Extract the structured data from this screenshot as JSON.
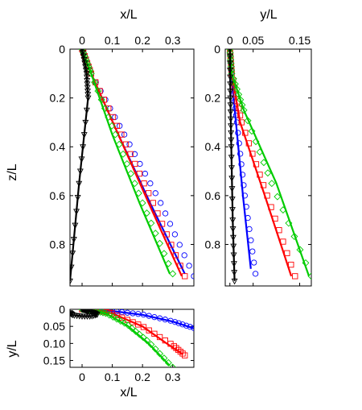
{
  "chart_data": [
    {
      "type": "scatter",
      "panel": "x-z",
      "xlabel": "x/L",
      "ylabel": "z/L",
      "xlim": [
        -0.04,
        0.37
      ],
      "ylim": [
        0,
        0.97
      ],
      "y_reversed": true,
      "xticks": [
        0,
        0.1,
        0.2,
        0.3
      ],
      "xtick_labels": [
        "0",
        "0.1",
        "0.2",
        "0.3"
      ],
      "yticks": [
        0,
        0.2,
        0.4,
        0.6,
        0.8
      ],
      "ytick_labels": [
        "0",
        "0.2",
        "0.4",
        "0.6",
        "0.8"
      ],
      "xaxis_position": "top",
      "grid": false,
      "series": [
        {
          "color": "#0000ff",
          "marker": "circle",
          "x": [
            0,
            0.03,
            0.14,
            0.26,
            0.37
          ],
          "y": [
            0,
            0.1,
            0.35,
            0.63,
            0.93
          ],
          "line_x": [
            0,
            0.03,
            0.12,
            0.225,
            0.34
          ],
          "line_y": [
            0,
            0.1,
            0.35,
            0.63,
            0.92
          ]
        },
        {
          "color": "#ff0000",
          "marker": "square",
          "x": [
            0,
            0.03,
            0.13,
            0.235,
            0.34
          ],
          "y": [
            0,
            0.1,
            0.35,
            0.63,
            0.93
          ],
          "line_x": [
            0,
            0.03,
            0.12,
            0.22,
            0.33
          ],
          "line_y": [
            0,
            0.1,
            0.35,
            0.63,
            0.93
          ]
        },
        {
          "color": "#00cc00",
          "marker": "diamond",
          "x": [
            0,
            0.03,
            0.11,
            0.2,
            0.3
          ],
          "y": [
            0,
            0.1,
            0.35,
            0.63,
            0.92
          ],
          "line_x": [
            0,
            0.03,
            0.1,
            0.19,
            0.29
          ],
          "line_y": [
            0,
            0.1,
            0.35,
            0.63,
            0.92
          ]
        },
        {
          "color": "#000000",
          "marker": "triangle-down",
          "x": [
            0,
            0.015,
            0.02,
            -0.01,
            -0.04
          ],
          "y": [
            0,
            0.1,
            0.2,
            0.55,
            0.95
          ],
          "line_x": [
            0,
            0.015,
            0.02,
            -0.01,
            -0.04
          ],
          "line_y": [
            0,
            0.1,
            0.2,
            0.55,
            0.95
          ]
        }
      ]
    },
    {
      "type": "scatter",
      "panel": "y-z",
      "xlabel": "y/L",
      "ylabel": "",
      "xlim": [
        -0.01,
        0.175
      ],
      "ylim": [
        0,
        0.97
      ],
      "y_reversed": true,
      "xticks": [
        0,
        0.05,
        0.15
      ],
      "xtick_labels": [
        "0",
        "0.05",
        "0.15"
      ],
      "yticks": [
        0,
        0.2,
        0.4,
        0.6,
        0.8
      ],
      "ytick_labels": [
        "0",
        "0.2",
        "0.4",
        "0.6",
        "0.8"
      ],
      "xaxis_position": "top",
      "grid": false,
      "series": [
        {
          "color": "#0000ff",
          "marker": "circle",
          "x": [
            0,
            0.003,
            0.015,
            0.032,
            0.055
          ],
          "y": [
            0,
            0.1,
            0.3,
            0.6,
            0.92
          ],
          "line_x": [
            0,
            0.003,
            0.013,
            0.028,
            0.045
          ],
          "line_y": [
            0,
            0.1,
            0.3,
            0.6,
            0.9
          ]
        },
        {
          "color": "#ff0000",
          "marker": "square",
          "x": [
            0,
            0.004,
            0.025,
            0.08,
            0.14
          ],
          "y": [
            0,
            0.1,
            0.3,
            0.6,
            0.93
          ],
          "line_x": [
            0,
            0.004,
            0.022,
            0.075,
            0.132
          ],
          "line_y": [
            0,
            0.1,
            0.3,
            0.6,
            0.93
          ]
        },
        {
          "color": "#00cc00",
          "marker": "diamond",
          "x": [
            0,
            0.004,
            0.03,
            0.09,
            0.175
          ],
          "y": [
            0,
            0.1,
            0.25,
            0.55,
            0.93
          ],
          "line_x": [
            0,
            0.004,
            0.03,
            0.1,
            0.17
          ],
          "line_y": [
            0,
            0.1,
            0.25,
            0.55,
            0.93
          ]
        },
        {
          "color": "#000000",
          "marker": "triangle-down",
          "x": [
            0,
            0.001,
            0.003,
            0.006,
            0.01
          ],
          "y": [
            0,
            0.2,
            0.4,
            0.7,
            0.95
          ],
          "line_x": [
            0,
            0.001,
            0.003,
            0.006,
            0.01
          ],
          "line_y": [
            0,
            0.2,
            0.4,
            0.7,
            0.95
          ]
        }
      ]
    },
    {
      "type": "scatter",
      "panel": "x-y",
      "xlabel": "x/L",
      "ylabel": "y/L",
      "xlim": [
        -0.04,
        0.37
      ],
      "ylim": [
        0,
        0.17
      ],
      "y_reversed": true,
      "xticks": [
        0,
        0.1,
        0.2,
        0.3
      ],
      "xtick_labels": [
        "0",
        "0.1",
        "0.2",
        "0.3"
      ],
      "yticks": [
        0,
        0.05,
        0.1,
        0.15
      ],
      "ytick_labels": [
        "0",
        "0.05",
        "0.10",
        "0.15"
      ],
      "xaxis_position": "bottom",
      "grid": false,
      "series": [
        {
          "color": "#0000ff",
          "marker": "circle",
          "x": [
            0,
            0.05,
            0.1,
            0.2,
            0.3,
            0.37
          ],
          "y": [
            0,
            0.001,
            0.005,
            0.015,
            0.035,
            0.055
          ],
          "line_x": [
            0,
            0.05,
            0.1,
            0.2,
            0.3,
            0.37
          ],
          "line_y": [
            0,
            0.001,
            0.005,
            0.016,
            0.036,
            0.056
          ]
        },
        {
          "color": "#ff0000",
          "marker": "square",
          "x": [
            0,
            0.05,
            0.1,
            0.2,
            0.3,
            0.34
          ],
          "y": [
            0,
            0.003,
            0.012,
            0.05,
            0.105,
            0.135
          ],
          "line_x": [
            0,
            0.05,
            0.1,
            0.2,
            0.28,
            0.33
          ],
          "line_y": [
            0,
            0.003,
            0.012,
            0.05,
            0.1,
            0.13
          ]
        },
        {
          "color": "#00cc00",
          "marker": "diamond",
          "x": [
            0,
            0.03,
            0.08,
            0.15,
            0.22,
            0.3
          ],
          "y": [
            0,
            0.002,
            0.012,
            0.045,
            0.095,
            0.17
          ],
          "line_x": [
            0,
            0.03,
            0.08,
            0.15,
            0.22,
            0.29
          ],
          "line_y": [
            0,
            0.002,
            0.013,
            0.048,
            0.1,
            0.165
          ]
        },
        {
          "color": "#000000",
          "marker": "triangle-down",
          "x": [
            0,
            0.01,
            0.02,
            0.04,
            0.05,
            0.03,
            0,
            -0.03,
            -0.04
          ],
          "y": [
            0,
            0.002,
            0.005,
            0.01,
            0.015,
            0.02,
            0.02,
            0.017,
            0.01
          ],
          "line_x": [
            0,
            0.01,
            0.02,
            0.04,
            0.05,
            0.03,
            0,
            -0.03,
            -0.04
          ],
          "line_y": [
            0,
            0.002,
            0.005,
            0.01,
            0.015,
            0.02,
            0.02,
            0.017,
            0.01
          ]
        }
      ]
    }
  ]
}
